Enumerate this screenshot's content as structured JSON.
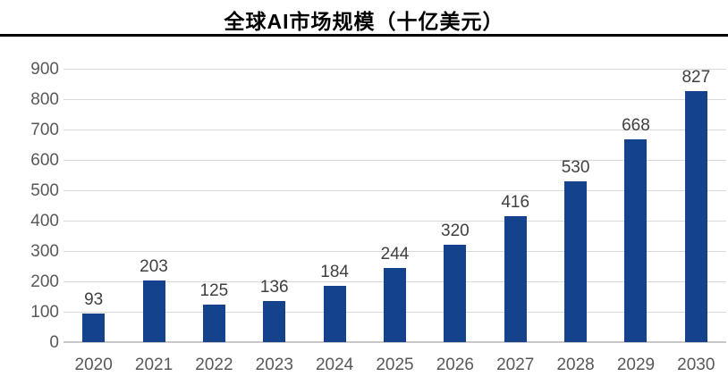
{
  "chart_data": {
    "type": "bar",
    "title": "全球AI市场规模（十亿美元）",
    "categories": [
      "2020",
      "2021",
      "2022",
      "2023",
      "2024",
      "2025",
      "2026",
      "2027",
      "2028",
      "2029",
      "2030"
    ],
    "values": [
      93,
      203,
      125,
      136,
      184,
      244,
      320,
      416,
      530,
      668,
      827
    ],
    "xlabel": "",
    "ylabel": "",
    "ylim": [
      0,
      900
    ],
    "yticks": [
      0,
      100,
      200,
      300,
      400,
      500,
      600,
      700,
      800,
      900
    ],
    "grid": "horizontal",
    "legend": "none",
    "data_labels": true,
    "colors": {
      "bar": "#15428C",
      "value_label": "#404040",
      "axis_text": "#595959",
      "gridline": "#D9D9D9",
      "axis_line": "#C8C8C8",
      "title": "#000000",
      "title_rule": "#000000",
      "background": "#FFFFFF"
    }
  }
}
